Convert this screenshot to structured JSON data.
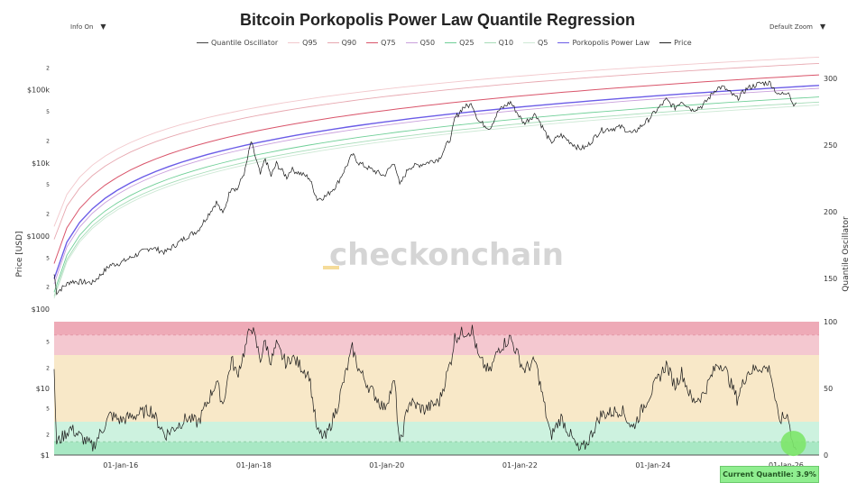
{
  "title": "Bitcoin Porkopolis Power Law Quantile Regression",
  "controls": {
    "info": "Info On",
    "zoom": "Default Zoom"
  },
  "legend": [
    {
      "name": "Quantile Oscillator",
      "color": "#444444"
    },
    {
      "name": "Q95",
      "color": "#f2c8cc"
    },
    {
      "name": "Q90",
      "color": "#e7a8b0"
    },
    {
      "name": "Q75",
      "color": "#d9546a"
    },
    {
      "name": "Q50",
      "color": "#c9a0dc"
    },
    {
      "name": "Q25",
      "color": "#6fcf97"
    },
    {
      "name": "Q10",
      "color": "#a6dcb8"
    },
    {
      "name": "Q5",
      "color": "#cfe9d6"
    },
    {
      "name": "Porkopolis Power Law",
      "color": "#6b5ce7"
    },
    {
      "name": "Price",
      "color": "#222222"
    }
  ],
  "watermark": "checkonchain",
  "current_quantile": "Current Quantile: 3.9%",
  "chart_data": {
    "type": "line",
    "title": "Bitcoin Porkopolis Power Law Quantile Regression",
    "x_ticks": [
      "01-Jan-16",
      "01-Jan-18",
      "01-Jan-20",
      "01-Jan-22",
      "01-Jan-24",
      "01-Jan-26"
    ],
    "x_range": [
      "2015-01-01",
      "2026-07-01"
    ],
    "price_axis": {
      "label": "Price [USD]",
      "scale": "log",
      "range": [
        100,
        300000
      ],
      "major_ticks": [
        {
          "v": 100,
          "t": "$100"
        },
        {
          "v": 1000,
          "t": "$1000"
        },
        {
          "v": 10000,
          "t": "$10k"
        },
        {
          "v": 100000,
          "t": "$100k"
        }
      ],
      "minor_ticks": [
        {
          "v": 200,
          "t": "2"
        },
        {
          "v": 500,
          "t": "5"
        },
        {
          "v": 2000,
          "t": "2"
        },
        {
          "v": 5000,
          "t": "5"
        },
        {
          "v": 20000,
          "t": "2"
        },
        {
          "v": 50000,
          "t": "5"
        },
        {
          "v": 200000,
          "t": "2"
        }
      ]
    },
    "price_right_axis": {
      "label": "Quantile Oscillator",
      "ticks": [
        150,
        200,
        250,
        300
      ]
    },
    "oscillator_left_axis": {
      "scale": "log",
      "range": [
        1,
        100
      ],
      "major_ticks": [
        {
          "v": 1,
          "t": "$1"
        },
        {
          "v": 10,
          "t": "$10"
        }
      ],
      "minor_ticks": [
        {
          "v": 2,
          "t": "2"
        },
        {
          "v": 5,
          "t": "5"
        },
        {
          "v": 20,
          "t": "2"
        },
        {
          "v": 50,
          "t": "5"
        }
      ]
    },
    "oscillator_axis": {
      "range": [
        0,
        100
      ],
      "ticks": [
        0,
        50,
        100
      ]
    },
    "bands": [
      {
        "from": 0,
        "to": 10,
        "color": "#a8e8c4"
      },
      {
        "from": 10,
        "to": 25,
        "color": "#cdf2df"
      },
      {
        "from": 25,
        "to": 75,
        "color": "#f8e8c8"
      },
      {
        "from": 75,
        "to": 90,
        "color": "#f4c8d0"
      },
      {
        "from": 90,
        "to": 100,
        "color": "#eeaab7"
      }
    ],
    "quantile_lines": [
      {
        "name": "Q95",
        "y_start": 1350,
        "y_end": 280000,
        "color": "#f2c8cc"
      },
      {
        "name": "Q90",
        "y_start": 900,
        "y_end": 230000,
        "color": "#e7a8b0"
      },
      {
        "name": "Q75",
        "y_start": 420,
        "y_end": 160000,
        "color": "#d9546a"
      },
      {
        "name": "Porkopolis Power Law",
        "y_start": 260,
        "y_end": 115000,
        "color": "#6b5ce7"
      },
      {
        "name": "Q50",
        "y_start": 220,
        "y_end": 105000,
        "color": "#c9a0dc"
      },
      {
        "name": "Q25",
        "y_start": 170,
        "y_end": 80000,
        "color": "#6fcf97"
      },
      {
        "name": "Q10",
        "y_start": 150,
        "y_end": 68000,
        "color": "#a6dcb8"
      },
      {
        "name": "Q5",
        "y_start": 140,
        "y_end": 62000,
        "color": "#cfe9d6"
      }
    ],
    "price_series": [
      {
        "x": "2015-01-01",
        "y": 300
      },
      {
        "x": "2015-01-15",
        "y": 170
      },
      {
        "x": "2015-04-01",
        "y": 240
      },
      {
        "x": "2015-08-01",
        "y": 230
      },
      {
        "x": "2015-11-05",
        "y": 400
      },
      {
        "x": "2016-01-01",
        "y": 430
      },
      {
        "x": "2016-06-15",
        "y": 700
      },
      {
        "x": "2016-09-01",
        "y": 600
      },
      {
        "x": "2017-01-01",
        "y": 990
      },
      {
        "x": "2017-03-01",
        "y": 1200
      },
      {
        "x": "2017-06-10",
        "y": 2900
      },
      {
        "x": "2017-07-15",
        "y": 2000
      },
      {
        "x": "2017-09-01",
        "y": 4800
      },
      {
        "x": "2017-10-01",
        "y": 4300
      },
      {
        "x": "2017-11-15",
        "y": 8000
      },
      {
        "x": "2017-12-17",
        "y": 19500
      },
      {
        "x": "2018-02-06",
        "y": 6900
      },
      {
        "x": "2018-03-05",
        "y": 11500
      },
      {
        "x": "2018-04-06",
        "y": 6600
      },
      {
        "x": "2018-05-05",
        "y": 9800
      },
      {
        "x": "2018-07-01",
        "y": 6400
      },
      {
        "x": "2018-07-25",
        "y": 8200
      },
      {
        "x": "2018-11-01",
        "y": 6300
      },
      {
        "x": "2018-12-15",
        "y": 3200
      },
      {
        "x": "2019-02-01",
        "y": 3500
      },
      {
        "x": "2019-04-01",
        "y": 5000
      },
      {
        "x": "2019-06-26",
        "y": 13000
      },
      {
        "x": "2019-08-01",
        "y": 10000
      },
      {
        "x": "2019-10-01",
        "y": 8300
      },
      {
        "x": "2019-12-17",
        "y": 6700
      },
      {
        "x": "2020-02-13",
        "y": 10300
      },
      {
        "x": "2020-03-12",
        "y": 4900
      },
      {
        "x": "2020-05-01",
        "y": 8700
      },
      {
        "x": "2020-07-25",
        "y": 9800
      },
      {
        "x": "2020-10-15",
        "y": 11500
      },
      {
        "x": "2020-12-20",
        "y": 23000
      },
      {
        "x": "2021-01-08",
        "y": 40000
      },
      {
        "x": "2021-02-21",
        "y": 57000
      },
      {
        "x": "2021-04-14",
        "y": 63500
      },
      {
        "x": "2021-05-20",
        "y": 37000
      },
      {
        "x": "2021-07-20",
        "y": 30000
      },
      {
        "x": "2021-09-06",
        "y": 52000
      },
      {
        "x": "2021-11-10",
        "y": 68000
      },
      {
        "x": "2022-01-22",
        "y": 35000
      },
      {
        "x": "2022-03-28",
        "y": 47000
      },
      {
        "x": "2022-06-18",
        "y": 19000
      },
      {
        "x": "2022-08-15",
        "y": 24000
      },
      {
        "x": "2022-11-21",
        "y": 15800
      },
      {
        "x": "2023-01-01",
        "y": 16500
      },
      {
        "x": "2023-03-20",
        "y": 28000
      },
      {
        "x": "2023-07-13",
        "y": 31000
      },
      {
        "x": "2023-09-11",
        "y": 25000
      },
      {
        "x": "2023-12-01",
        "y": 38000
      },
      {
        "x": "2024-03-14",
        "y": 73000
      },
      {
        "x": "2024-05-01",
        "y": 57000
      },
      {
        "x": "2024-06-07",
        "y": 71000
      },
      {
        "x": "2024-08-05",
        "y": 53000
      },
      {
        "x": "2024-10-01",
        "y": 61000
      },
      {
        "x": "2024-12-17",
        "y": 106000
      },
      {
        "x": "2025-01-20",
        "y": 109000
      },
      {
        "x": "2025-04-07",
        "y": 76000
      },
      {
        "x": "2025-06-01",
        "y": 105000
      },
      {
        "x": "2025-08-14",
        "y": 123000
      },
      {
        "x": "2025-10-06",
        "y": 125000
      },
      {
        "x": "2025-11-21",
        "y": 84000
      },
      {
        "x": "2026-01-14",
        "y": 97000
      },
      {
        "x": "2026-02-05",
        "y": 65000
      },
      {
        "x": "2026-02-25",
        "y": 67000
      }
    ],
    "oscillator_series": [
      {
        "x": "2015-01-01",
        "y": 60
      },
      {
        "x": "2015-01-15",
        "y": 9
      },
      {
        "x": "2015-04-01",
        "y": 20
      },
      {
        "x": "2015-08-01",
        "y": 6
      },
      {
        "x": "2015-11-05",
        "y": 30
      },
      {
        "x": "2016-01-01",
        "y": 26
      },
      {
        "x": "2016-06-15",
        "y": 34
      },
      {
        "x": "2016-09-01",
        "y": 15
      },
      {
        "x": "2017-01-01",
        "y": 28
      },
      {
        "x": "2017-03-01",
        "y": 24
      },
      {
        "x": "2017-06-10",
        "y": 55
      },
      {
        "x": "2017-07-15",
        "y": 38
      },
      {
        "x": "2017-09-01",
        "y": 72
      },
      {
        "x": "2017-10-01",
        "y": 60
      },
      {
        "x": "2017-11-15",
        "y": 80
      },
      {
        "x": "2017-12-17",
        "y": 98
      },
      {
        "x": "2018-02-06",
        "y": 72
      },
      {
        "x": "2018-03-05",
        "y": 85
      },
      {
        "x": "2018-04-06",
        "y": 70
      },
      {
        "x": "2018-05-05",
        "y": 82
      },
      {
        "x": "2018-07-01",
        "y": 68
      },
      {
        "x": "2018-07-25",
        "y": 74
      },
      {
        "x": "2018-11-01",
        "y": 60
      },
      {
        "x": "2018-12-15",
        "y": 17
      },
      {
        "x": "2019-02-01",
        "y": 13
      },
      {
        "x": "2019-04-01",
        "y": 35
      },
      {
        "x": "2019-06-26",
        "y": 80
      },
      {
        "x": "2019-08-01",
        "y": 64
      },
      {
        "x": "2019-10-01",
        "y": 50
      },
      {
        "x": "2019-12-17",
        "y": 35
      },
      {
        "x": "2020-02-13",
        "y": 55
      },
      {
        "x": "2020-03-12",
        "y": 6
      },
      {
        "x": "2020-05-01",
        "y": 40
      },
      {
        "x": "2020-07-25",
        "y": 34
      },
      {
        "x": "2020-10-15",
        "y": 40
      },
      {
        "x": "2020-12-20",
        "y": 72
      },
      {
        "x": "2021-01-08",
        "y": 88
      },
      {
        "x": "2021-02-21",
        "y": 92
      },
      {
        "x": "2021-04-14",
        "y": 94
      },
      {
        "x": "2021-05-20",
        "y": 72
      },
      {
        "x": "2021-07-20",
        "y": 62
      },
      {
        "x": "2021-09-06",
        "y": 80
      },
      {
        "x": "2021-11-10",
        "y": 88
      },
      {
        "x": "2022-01-22",
        "y": 64
      },
      {
        "x": "2022-03-28",
        "y": 70
      },
      {
        "x": "2022-06-18",
        "y": 14
      },
      {
        "x": "2022-08-15",
        "y": 28
      },
      {
        "x": "2022-11-21",
        "y": 3
      },
      {
        "x": "2023-01-01",
        "y": 8
      },
      {
        "x": "2023-03-20",
        "y": 30
      },
      {
        "x": "2023-07-13",
        "y": 34
      },
      {
        "x": "2023-09-11",
        "y": 20
      },
      {
        "x": "2023-12-01",
        "y": 42
      },
      {
        "x": "2024-03-14",
        "y": 68
      },
      {
        "x": "2024-05-01",
        "y": 52
      },
      {
        "x": "2024-06-07",
        "y": 62
      },
      {
        "x": "2024-08-05",
        "y": 40
      },
      {
        "x": "2024-10-01",
        "y": 45
      },
      {
        "x": "2024-12-17",
        "y": 68
      },
      {
        "x": "2025-01-20",
        "y": 68
      },
      {
        "x": "2025-04-07",
        "y": 42
      },
      {
        "x": "2025-06-01",
        "y": 62
      },
      {
        "x": "2025-08-14",
        "y": 66
      },
      {
        "x": "2025-10-06",
        "y": 64
      },
      {
        "x": "2025-11-21",
        "y": 26
      },
      {
        "x": "2026-01-14",
        "y": 30
      },
      {
        "x": "2026-02-05",
        "y": 9
      },
      {
        "x": "2026-02-25",
        "y": 4
      }
    ]
  }
}
